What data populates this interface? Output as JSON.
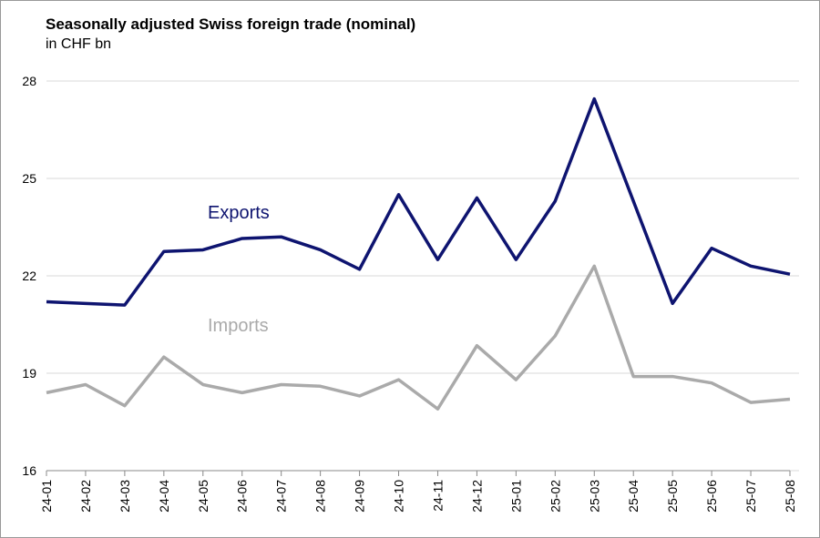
{
  "chart_data": {
    "type": "line",
    "title": "Seasonally adjusted Swiss foreign trade (nominal)",
    "subtitle": "in CHF bn",
    "categories": [
      "24-01",
      "24-02",
      "24-03",
      "24-04",
      "24-05",
      "24-06",
      "24-07",
      "24-08",
      "24-09",
      "24-10",
      "24-11",
      "24-12",
      "25-01",
      "25-02",
      "25-03",
      "25-04",
      "25-05",
      "25-06",
      "25-07",
      "25-08"
    ],
    "series": [
      {
        "name": "Exports",
        "color": "#0e1470",
        "values": [
          21.2,
          21.15,
          21.1,
          22.75,
          22.8,
          23.15,
          23.2,
          22.8,
          22.2,
          24.5,
          22.5,
          24.4,
          22.5,
          24.3,
          27.45,
          24.3,
          21.15,
          22.85,
          22.3,
          22.05
        ]
      },
      {
        "name": "Imports",
        "color": "#aaaaaa",
        "values": [
          18.4,
          18.65,
          18.0,
          19.5,
          18.65,
          18.4,
          18.65,
          18.6,
          18.3,
          18.8,
          17.9,
          19.85,
          18.8,
          20.15,
          22.3,
          18.9,
          18.9,
          18.7,
          18.1,
          18.2
        ]
      }
    ],
    "ylim": [
      16,
      28
    ],
    "yticks": [
      16,
      19,
      22,
      25,
      28
    ],
    "grid": true
  }
}
